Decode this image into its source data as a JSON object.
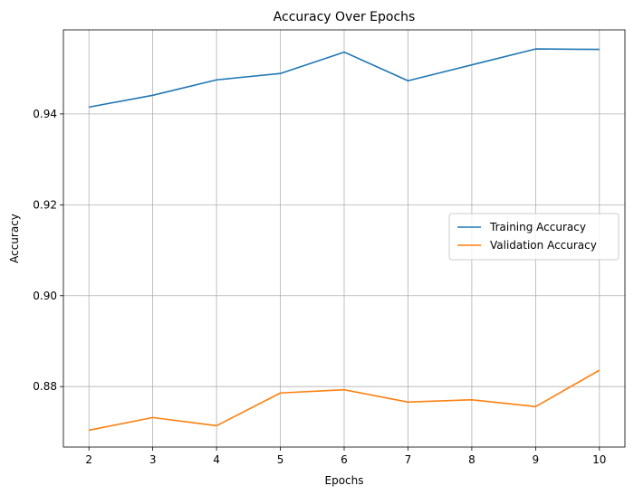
{
  "chart_data": {
    "type": "line",
    "title": "Accuracy Over Epochs",
    "xlabel": "Epochs",
    "ylabel": "Accuracy",
    "x": [
      2,
      3,
      4,
      5,
      6,
      7,
      8,
      9,
      10
    ],
    "xticks": [
      "2",
      "3",
      "4",
      "5",
      "6",
      "7",
      "8",
      "9",
      "10"
    ],
    "yticks": [
      0.88,
      0.9,
      0.92,
      0.94
    ],
    "ytick_labels": [
      "0.88",
      "0.90",
      "0.92",
      "0.94"
    ],
    "xlim": [
      1.6,
      10.4
    ],
    "ylim": [
      0.8667,
      0.9585
    ],
    "grid": true,
    "legend_position": "center-right",
    "series": [
      {
        "name": "Training Accuracy",
        "color": "#1f77b4",
        "values": [
          0.9415,
          0.9441,
          0.9475,
          0.9489,
          0.9536,
          0.9473,
          0.9508,
          0.9543,
          0.9542
        ]
      },
      {
        "name": "Validation Accuracy",
        "color": "#ff7f0e",
        "values": [
          0.8704,
          0.8732,
          0.8714,
          0.8786,
          0.8793,
          0.8766,
          0.8771,
          0.8756,
          0.8836
        ]
      }
    ]
  }
}
